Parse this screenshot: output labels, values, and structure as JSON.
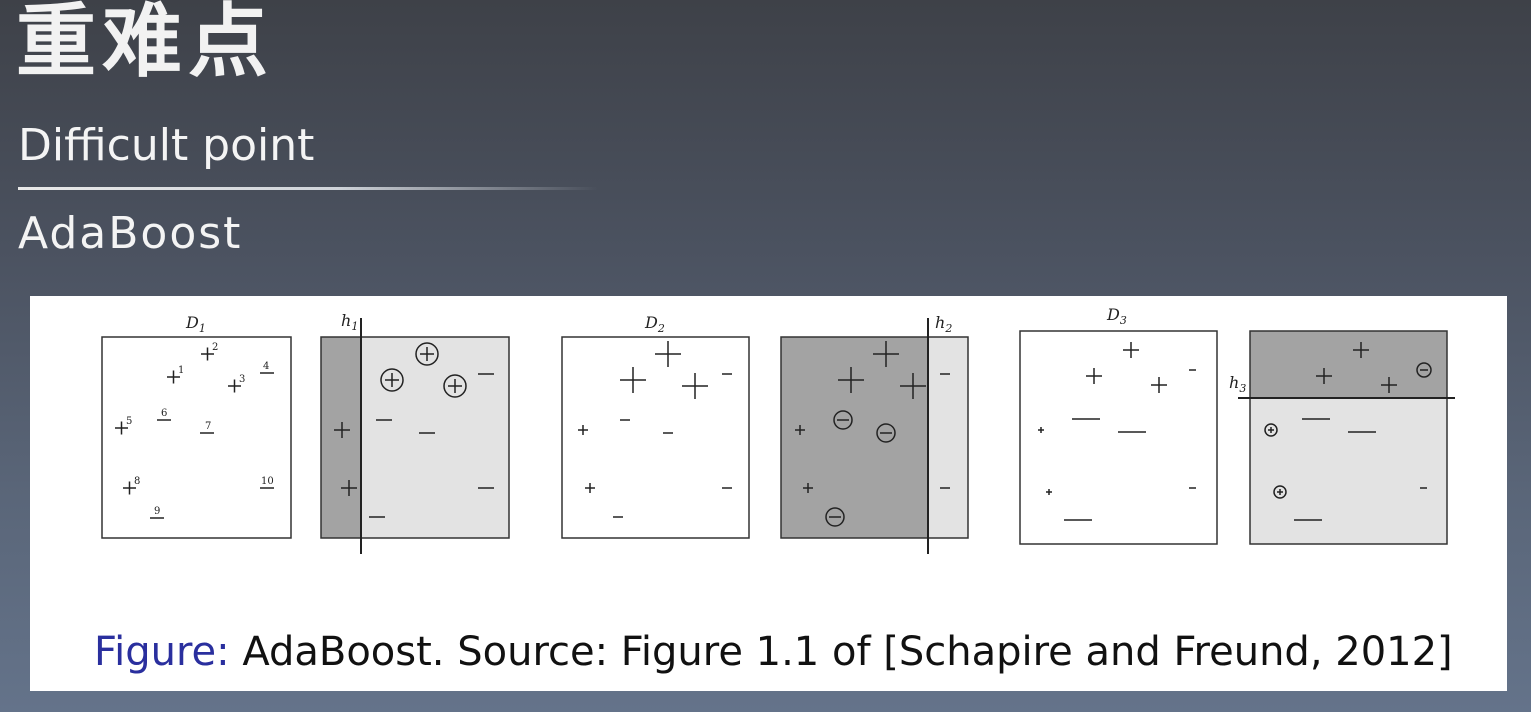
{
  "slide": {
    "title_cn": "重难点",
    "title_en": "Difficult point",
    "section": "AdaBoost"
  },
  "figure": {
    "caption_label": "Figure:",
    "caption_text": " AdaBoost. Source: Figure 1.1 of [Schapire and Freund, 2012]",
    "panels": [
      {
        "label_main": "D",
        "label_sub": "1",
        "kind": "distribution"
      },
      {
        "label_main": "h",
        "label_sub": "1",
        "kind": "hypothesis"
      },
      {
        "label_main": "D",
        "label_sub": "2",
        "kind": "distribution"
      },
      {
        "label_main": "h",
        "label_sub": "2",
        "kind": "hypothesis"
      },
      {
        "label_main": "D",
        "label_sub": "3",
        "kind": "distribution"
      },
      {
        "label_main": "h",
        "label_sub": "3",
        "kind": "hypothesis"
      }
    ],
    "d1_point_labels": [
      "1",
      "2",
      "3",
      "4",
      "5",
      "6",
      "7",
      "8",
      "9",
      "10"
    ]
  },
  "colors": {
    "dark_region": "#a3a3a3",
    "light_region": "#e3e3e3",
    "caption_label": "#2a2f9e"
  }
}
